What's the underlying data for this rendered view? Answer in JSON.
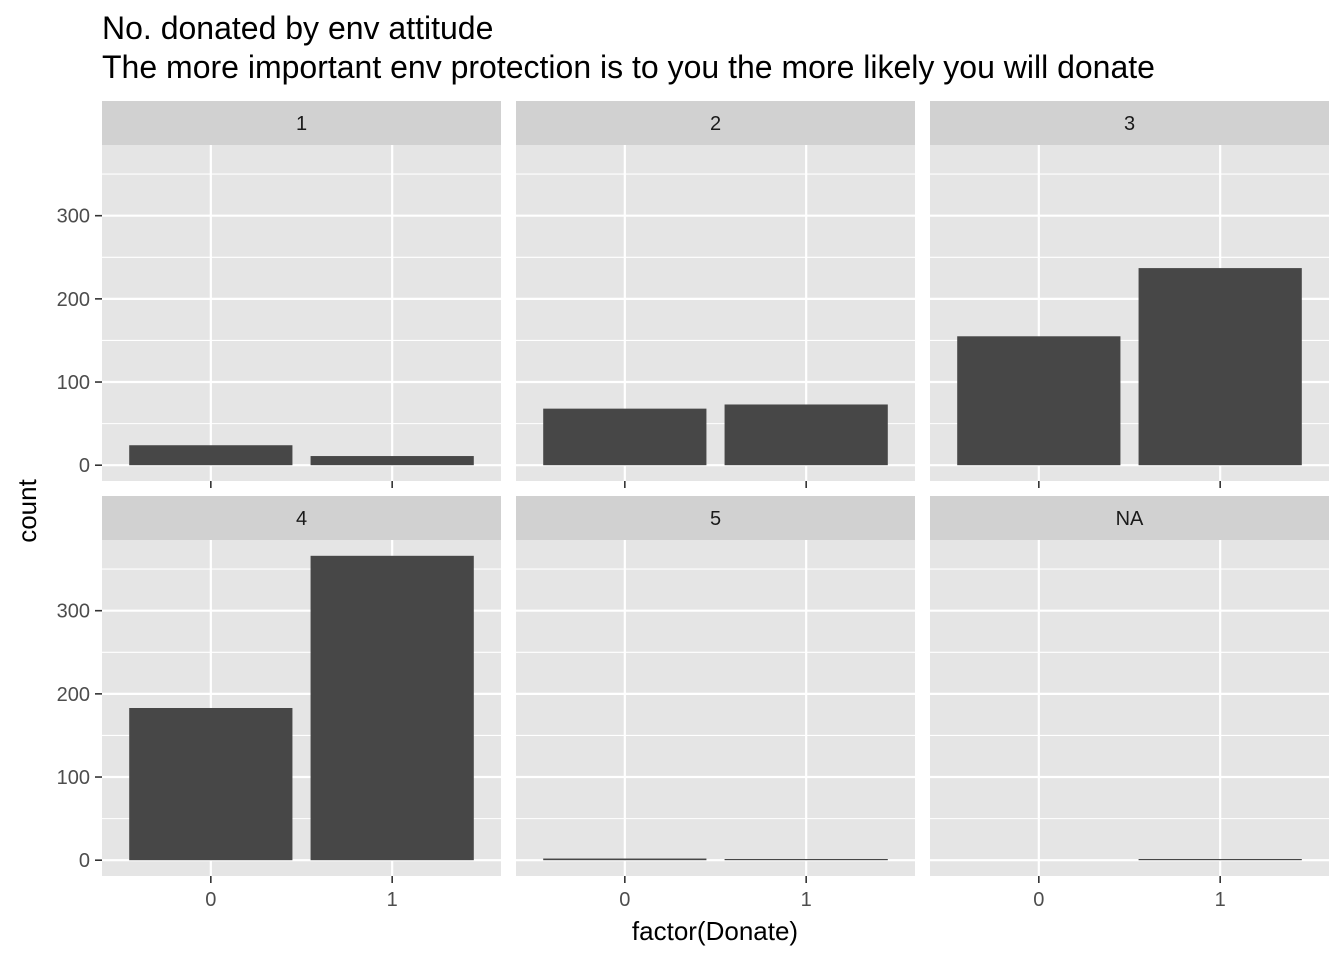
{
  "chart_data": {
    "type": "bar",
    "title": "No. donated by env attitude",
    "subtitle": "The more important env protection is to you the more likely you will donate",
    "xlabel": "factor(Donate)",
    "ylabel": "count",
    "categories": [
      "0",
      "1"
    ],
    "y_ticks": [
      0,
      100,
      200,
      300
    ],
    "ylim": [
      -19,
      385
    ],
    "grid": true,
    "facets": [
      {
        "label": "1",
        "values": [
          24,
          11
        ]
      },
      {
        "label": "2",
        "values": [
          68,
          73
        ]
      },
      {
        "label": "3",
        "values": [
          155,
          237
        ]
      },
      {
        "label": "4",
        "values": [
          183,
          366
        ]
      },
      {
        "label": "5",
        "values": [
          2,
          1
        ]
      },
      {
        "label": "NA",
        "values": [
          0,
          1
        ]
      }
    ],
    "colors": {
      "panel_bg": "#e5e5e5",
      "strip_bg": "#d1d1d1",
      "grid": "#ffffff",
      "bar": "#474747"
    }
  }
}
